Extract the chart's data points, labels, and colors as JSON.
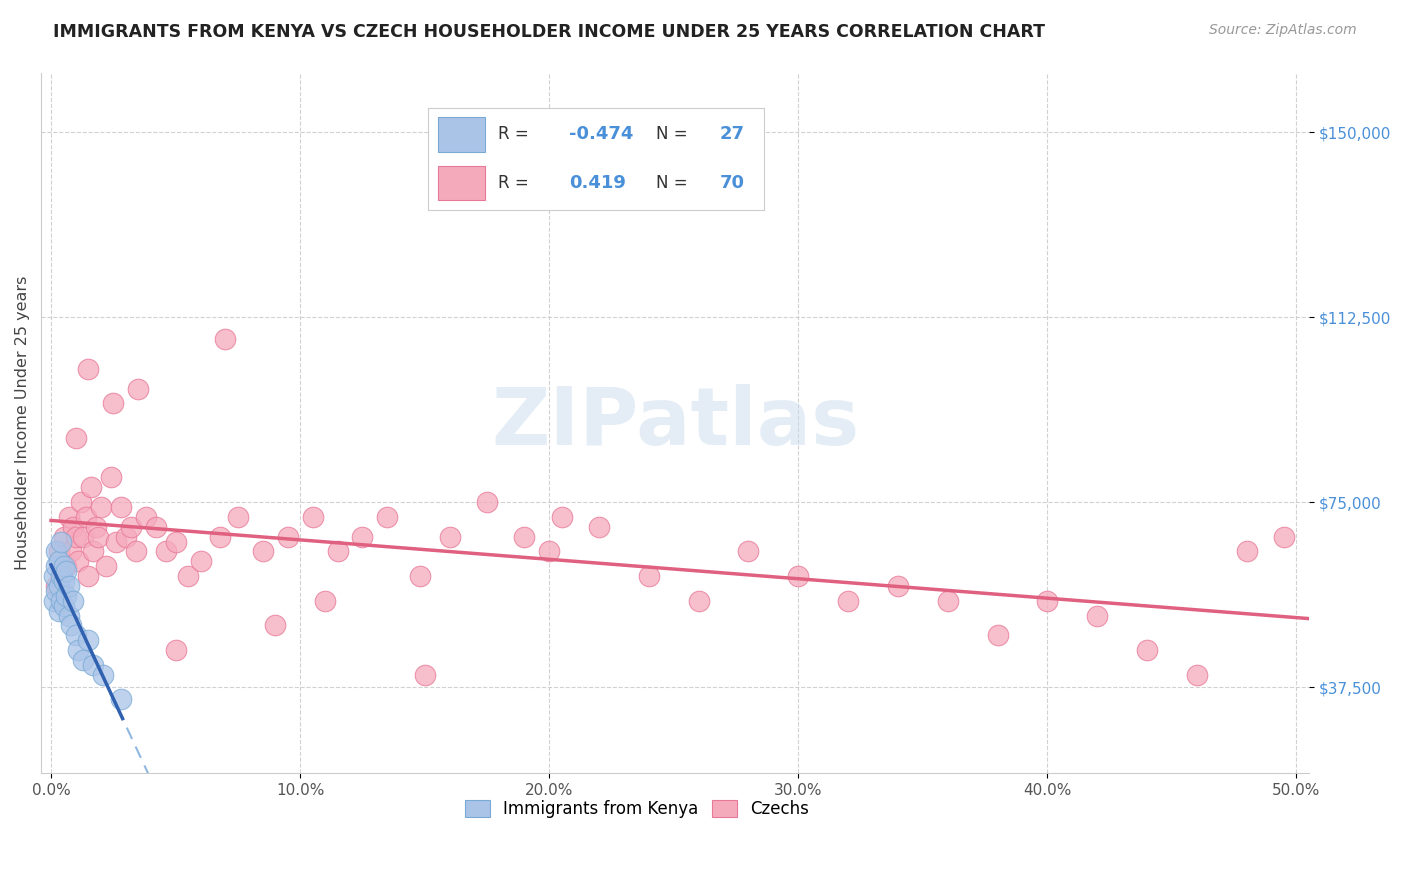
{
  "title": "IMMIGRANTS FROM KENYA VS CZECH HOUSEHOLDER INCOME UNDER 25 YEARS CORRELATION CHART",
  "source": "Source: ZipAtlas.com",
  "ylabel": "Householder Income Under 25 years",
  "xlim": [
    -0.004,
    0.505
  ],
  "ylim": [
    20000,
    162000
  ],
  "xtick_vals": [
    0.0,
    0.1,
    0.2,
    0.3,
    0.4,
    0.5
  ],
  "xtick_labels": [
    "0.0%",
    "10.0%",
    "20.0%",
    "30.0%",
    "40.0%",
    "50.0%"
  ],
  "ytick_vals": [
    37500,
    75000,
    112500,
    150000
  ],
  "ytick_labels": [
    "$37,500",
    "$75,000",
    "$112,500",
    "$150,000"
  ],
  "kenya_color": "#aac4e8",
  "czech_color": "#f5aabc",
  "kenya_edge": "#7aaad4",
  "czech_edge": "#e87898",
  "trend_kenya_solid_color": "#3060b0",
  "trend_kenya_dash_color": "#90b8e0",
  "trend_czech_color": "#e06080",
  "watermark": "ZIPatlas",
  "legend1_r": "-0.474",
  "legend1_n": "27",
  "legend2_r": "0.419",
  "legend2_n": "70",
  "kenya_x": [
    0.001,
    0.001,
    0.002,
    0.002,
    0.002,
    0.003,
    0.003,
    0.003,
    0.004,
    0.004,
    0.004,
    0.005,
    0.005,
    0.005,
    0.006,
    0.006,
    0.007,
    0.007,
    0.008,
    0.009,
    0.01,
    0.011,
    0.013,
    0.015,
    0.017,
    0.021,
    0.028
  ],
  "kenya_y": [
    55000,
    60000,
    57000,
    62000,
    65000,
    53000,
    58000,
    63000,
    55000,
    60000,
    67000,
    54000,
    59000,
    62000,
    56000,
    61000,
    52000,
    58000,
    50000,
    55000,
    48000,
    45000,
    43000,
    47000,
    42000,
    40000,
    35000
  ],
  "czech_x": [
    0.002,
    0.003,
    0.004,
    0.005,
    0.006,
    0.007,
    0.008,
    0.009,
    0.01,
    0.011,
    0.012,
    0.013,
    0.014,
    0.015,
    0.016,
    0.017,
    0.018,
    0.019,
    0.02,
    0.022,
    0.024,
    0.026,
    0.028,
    0.03,
    0.032,
    0.034,
    0.038,
    0.042,
    0.046,
    0.05,
    0.055,
    0.06,
    0.068,
    0.075,
    0.085,
    0.095,
    0.105,
    0.115,
    0.125,
    0.135,
    0.148,
    0.16,
    0.175,
    0.19,
    0.205,
    0.22,
    0.24,
    0.26,
    0.28,
    0.3,
    0.32,
    0.34,
    0.36,
    0.38,
    0.4,
    0.42,
    0.44,
    0.46,
    0.48,
    0.495,
    0.01,
    0.015,
    0.025,
    0.035,
    0.05,
    0.07,
    0.09,
    0.11,
    0.15,
    0.2
  ],
  "czech_y": [
    58000,
    65000,
    60000,
    68000,
    62000,
    72000,
    65000,
    70000,
    68000,
    63000,
    75000,
    68000,
    72000,
    60000,
    78000,
    65000,
    70000,
    68000,
    74000,
    62000,
    80000,
    67000,
    74000,
    68000,
    70000,
    65000,
    72000,
    70000,
    65000,
    67000,
    60000,
    63000,
    68000,
    72000,
    65000,
    68000,
    72000,
    65000,
    68000,
    72000,
    60000,
    68000,
    75000,
    68000,
    72000,
    70000,
    60000,
    55000,
    65000,
    60000,
    55000,
    58000,
    55000,
    48000,
    55000,
    52000,
    45000,
    40000,
    65000,
    68000,
    88000,
    102000,
    95000,
    98000,
    45000,
    108000,
    50000,
    55000,
    40000,
    65000
  ]
}
